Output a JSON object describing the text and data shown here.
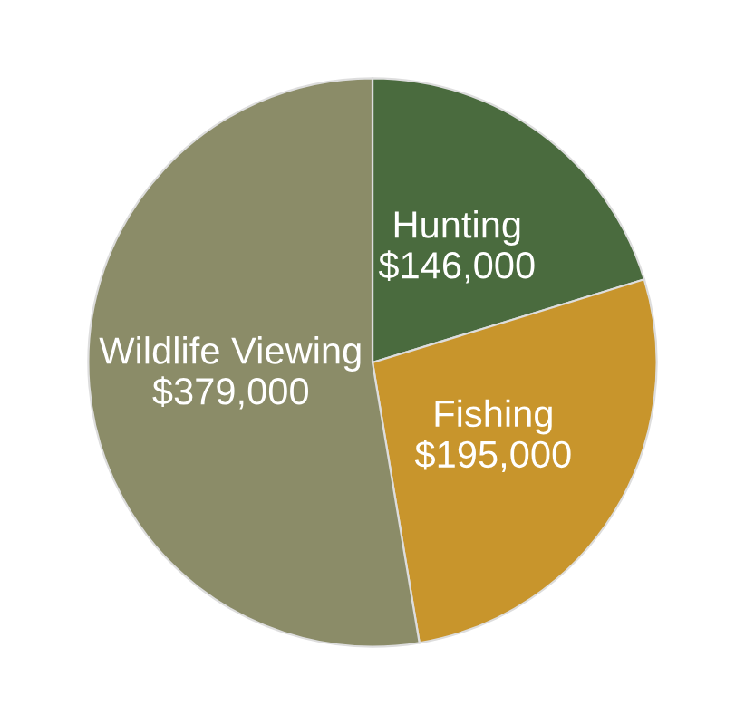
{
  "chart_data": {
    "type": "pie",
    "categories": [
      "Hunting",
      "Fishing",
      "Wildlife Viewing"
    ],
    "values": [
      146000,
      195000,
      379000
    ],
    "value_labels": [
      "$146,000",
      "$195,000",
      "$379,000"
    ],
    "colors": [
      "#4a6b3e",
      "#c8952c",
      "#8b8c68"
    ],
    "legend": false
  }
}
